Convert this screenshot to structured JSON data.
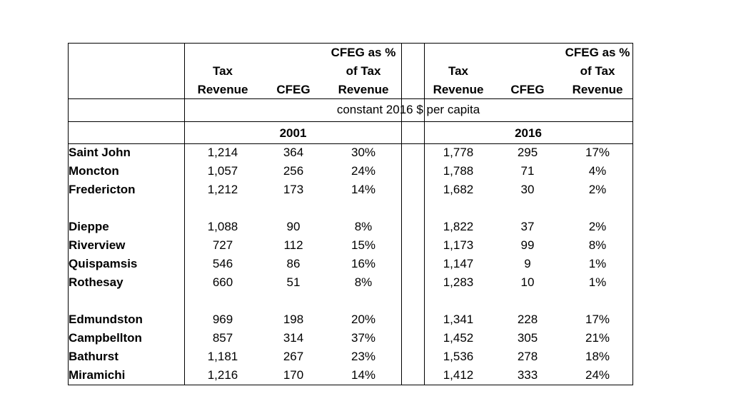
{
  "header": {
    "group1": {
      "tax": [
        "Tax",
        "Revenue"
      ],
      "cfeg": "CFEG",
      "pct": [
        "CFEG as %",
        "of Tax",
        "Revenue"
      ]
    },
    "group2": {
      "tax": [
        "Tax",
        "Revenue"
      ],
      "cfeg": "CFEG",
      "pct": [
        "CFEG as %",
        "of Tax",
        "Revenue"
      ]
    }
  },
  "units_label": "constant 2016 $ per capita",
  "year1": "2001",
  "year2": "2016",
  "rows": [
    {
      "name": "Saint John",
      "tax01": "1,214",
      "cfeg01": "364",
      "pct01": "30%",
      "tax16": "1,778",
      "cfeg16": "295",
      "pct16": "17%"
    },
    {
      "name": "Moncton",
      "tax01": "1,057",
      "cfeg01": "256",
      "pct01": "24%",
      "tax16": "1,788",
      "cfeg16": "71",
      "pct16": "4%"
    },
    {
      "name": "Fredericton",
      "tax01": "1,212",
      "cfeg01": "173",
      "pct01": "14%",
      "tax16": "1,682",
      "cfeg16": "30",
      "pct16": "2%"
    },
    {
      "name": "Dieppe",
      "tax01": "1,088",
      "cfeg01": "90",
      "pct01": "8%",
      "tax16": "1,822",
      "cfeg16": "37",
      "pct16": "2%"
    },
    {
      "name": "Riverview",
      "tax01": "727",
      "cfeg01": "112",
      "pct01": "15%",
      "tax16": "1,173",
      "cfeg16": "99",
      "pct16": "8%"
    },
    {
      "name": "Quispamsis",
      "tax01": "546",
      "cfeg01": "86",
      "pct01": "16%",
      "tax16": "1,147",
      "cfeg16": "9",
      "pct16": "1%"
    },
    {
      "name": "Rothesay",
      "tax01": "660",
      "cfeg01": "51",
      "pct01": "8%",
      "tax16": "1,283",
      "cfeg16": "10",
      "pct16": "1%"
    },
    {
      "name": "Edmundston",
      "tax01": "969",
      "cfeg01": "198",
      "pct01": "20%",
      "tax16": "1,341",
      "cfeg16": "228",
      "pct16": "17%"
    },
    {
      "name": "Campbellton",
      "tax01": "857",
      "cfeg01": "314",
      "pct01": "37%",
      "tax16": "1,452",
      "cfeg16": "305",
      "pct16": "21%"
    },
    {
      "name": "Bathurst",
      "tax01": "1,181",
      "cfeg01": "267",
      "pct01": "23%",
      "tax16": "1,536",
      "cfeg16": "278",
      "pct16": "18%"
    },
    {
      "name": "Miramichi",
      "tax01": "1,216",
      "cfeg01": "170",
      "pct01": "14%",
      "tax16": "1,412",
      "cfeg16": "333",
      "pct16": "24%"
    }
  ]
}
